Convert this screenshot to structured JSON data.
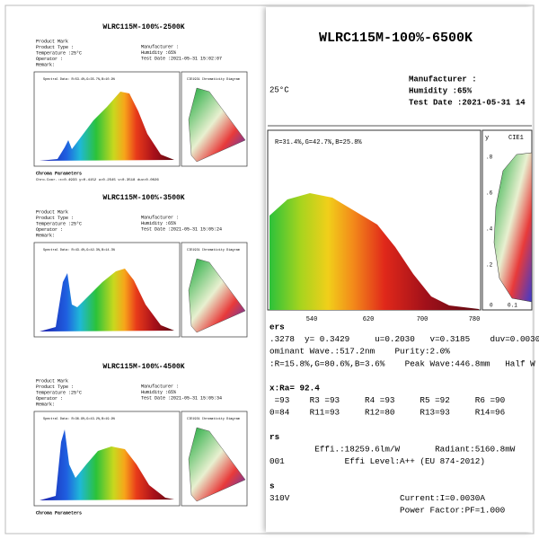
{
  "small_reports": [
    {
      "title": "WLRC115M-100%-2500K",
      "left": [
        "Product Mark",
        "Product Type :",
        "Temperature :25°C",
        "Operator :",
        "Remark:"
      ],
      "right": [
        "Manufacturer :",
        "Humidity :65%",
        "Test Date :2021-05-31 15:02:07"
      ],
      "plot_label": "Spectral Data: R=53.4%,G=35.7%,B=10.9%",
      "cie_label": "CIE1931 Chromaticity Diagram",
      "footer": [
        "Chroma Parameters",
        "Chro.Coor.:x=0.4933 y=0.4152 u=0.2545 v=0.3518 duv=0.0026"
      ]
    },
    {
      "title": "WLRC115M-100%-3500K",
      "left": [
        "Product Mark",
        "Product Type :",
        "Temperature :25°C",
        "Operator :",
        "Remark:"
      ],
      "right": [
        "Manufacturer :",
        "Humidity :65%",
        "Test Date :2021-05-31 15:05:24"
      ],
      "plot_label": "Spectral Data: R=43.4%,G=42.3%,B=14.3%",
      "cie_label": "CIE1931 Chromaticity Diagram",
      "footer": []
    },
    {
      "title": "WLRC115M-100%-4500K",
      "left": [
        "Product Mark",
        "Product Type :",
        "Temperature :25°C",
        "Operator :",
        "Remark:"
      ],
      "right": [
        "Manufacturer :",
        "Humidity :65%",
        "Test Date :2021-05-31 15:05:34"
      ],
      "plot_label": "Spectral Data: R=36.9%,G=43.2%,B=19.9%",
      "cie_label": "CIE1931 Chromaticity Diagram",
      "footer": [
        "Chroma Parameters"
      ]
    }
  ],
  "large_report": {
    "title": "WLRC115M-100%-6500K",
    "header_left": "25°C",
    "header_right": [
      "Manufacturer :",
      "Humidity :65%",
      "Test Date :2021-05-31 14"
    ],
    "plot_label": "R=31.4%,G=42.7%,B=25.8%",
    "x_ticks": [
      "540",
      "620",
      "700",
      "780"
    ],
    "cie_axis": "y",
    "cie_label": "CIE1",
    "cie_ticks": [
      ".8",
      ".6",
      ".4",
      ".2"
    ],
    "cie_x_ticks": [
      "0",
      "0.1"
    ],
    "params": [
      "ers",
      ".3278  y= 0.3429     u=0.2030   v=0.3185    duv=0.0030",
      "ominant Wave.:517.2nm    Purity:2.0%",
      ":R=15.8%,G=80.6%,B=3.6%    Peak Wave:446.8mm   Half W",
      "",
      "x:Ra= 92.4",
      " =93    R3 =93     R4 =93     R5 =92     R6 =90",
      "0=84    R11=93     R12=80     R13=93     R14=96",
      "",
      "rs",
      "         Effi.:18259.6lm/W       Radiant:5160.8mW",
      "001            Effi Level:A++ (EU 874-2012)",
      "",
      "s",
      "310V                      Current:I=0.0030A",
      "                          Power Factor:PF=1.000"
    ]
  }
}
